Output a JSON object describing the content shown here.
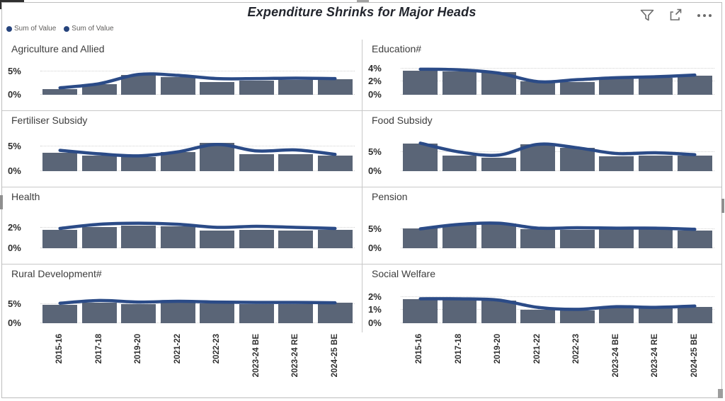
{
  "header": {
    "title": "Expenditure Shrinks for Major Heads",
    "icons": [
      "filter-icon",
      "focus-mode-icon",
      "more-options-icon"
    ]
  },
  "legend": {
    "items": [
      {
        "label": "Sum of Value"
      },
      {
        "label": "Sum of Value"
      }
    ]
  },
  "colors": {
    "bar": "#5a6577",
    "line": "#2b4b87",
    "legend_dot": "#26437c",
    "gridline": "#d2d2d2",
    "divider": "#c8c8c8",
    "card_border": "#bdbdbd",
    "title_text": "#22252d",
    "panel_title_text": "#3d3d3d",
    "axis_text": "#2e2e2e",
    "legend_text": "#605e5c"
  },
  "x_axis": {
    "shared": true,
    "categories": [
      "2015-16",
      "2017-18",
      "2019-20",
      "2021-22",
      "2022-23",
      "2023-24 BE",
      "2023-24 RE",
      "2024-25 BE"
    ]
  },
  "chart_data": [
    {
      "type": "bar+line",
      "title": "Agriculture and Allied",
      "categories": [
        "2015-16",
        "2017-18",
        "2019-20",
        "2021-22",
        "2022-23",
        "2023-24 BE",
        "2023-24 RE",
        "2024-25 BE"
      ],
      "value_format": "percent",
      "yticks": [
        0,
        5
      ],
      "ylim": [
        0,
        7.8
      ],
      "grid": "dotted-horizontal",
      "series": [
        {
          "name": "Sum of Value",
          "type": "bar",
          "values": [
            1.2,
            2.3,
            4.3,
            3.9,
            2.8,
            3.0,
            3.2,
            3.3
          ]
        },
        {
          "name": "Sum of Value",
          "type": "line",
          "values": [
            1.5,
            2.4,
            4.4,
            4.2,
            3.5,
            3.5,
            3.6,
            3.5
          ]
        }
      ]
    },
    {
      "type": "bar+line",
      "title": "Education#",
      "categories": [
        "2015-16",
        "2017-18",
        "2019-20",
        "2021-22",
        "2022-23",
        "2023-24 BE",
        "2023-24 RE",
        "2024-25 BE"
      ],
      "value_format": "percent",
      "yticks": [
        0,
        2,
        4
      ],
      "ylim": [
        0,
        5.5
      ],
      "grid": "dotted-horizontal",
      "series": [
        {
          "name": "Sum of Value",
          "type": "bar",
          "values": [
            3.7,
            3.6,
            3.4,
            2.1,
            1.9,
            2.5,
            2.6,
            2.9
          ]
        },
        {
          "name": "Sum of Value",
          "type": "line",
          "values": [
            3.9,
            3.8,
            3.3,
            2.0,
            2.3,
            2.6,
            2.75,
            3.0
          ]
        }
      ]
    },
    {
      "type": "bar+line",
      "title": "Fertiliser Subsidy",
      "categories": [
        "2015-16",
        "2017-18",
        "2019-20",
        "2021-22",
        "2022-23",
        "2023-24 BE",
        "2023-24 RE",
        "2024-25 BE"
      ],
      "value_format": "percent",
      "yticks": [
        0,
        5
      ],
      "ylim": [
        0,
        8.3
      ],
      "grid": "dotted-horizontal",
      "series": [
        {
          "name": "Sum of Value",
          "type": "bar",
          "values": [
            3.7,
            3.1,
            2.9,
            3.8,
            5.7,
            3.4,
            3.5,
            3.2
          ]
        },
        {
          "name": "Sum of Value",
          "type": "line",
          "values": [
            4.2,
            3.5,
            3.1,
            3.9,
            5.4,
            4.1,
            4.3,
            3.4
          ]
        }
      ]
    },
    {
      "type": "bar+line",
      "title": "Food Subsidy",
      "categories": [
        "2015-16",
        "2017-18",
        "2019-20",
        "2021-22",
        "2022-23",
        "2023-24 BE",
        "2023-24 RE",
        "2024-25 BE"
      ],
      "value_format": "percent",
      "yticks": [
        0,
        5
      ],
      "ylim": [
        0,
        10.7
      ],
      "grid": "dotted-horizontal",
      "series": [
        {
          "name": "Sum of Value",
          "type": "bar",
          "values": [
            7.2,
            4.1,
            3.6,
            7.0,
            6.0,
            3.8,
            4.1,
            4.0
          ]
        },
        {
          "name": "Sum of Value",
          "type": "line",
          "values": [
            7.3,
            5.0,
            4.2,
            7.0,
            6.1,
            4.6,
            4.8,
            4.3
          ]
        }
      ]
    },
    {
      "type": "bar+line",
      "title": "Health",
      "categories": [
        "2015-16",
        "2017-18",
        "2019-20",
        "2021-22",
        "2022-23",
        "2023-24 BE",
        "2023-24 RE",
        "2024-25 BE"
      ],
      "value_format": "percent",
      "yticks": [
        0,
        2
      ],
      "ylim": [
        0,
        4.0
      ],
      "grid": "dotted-horizontal",
      "series": [
        {
          "name": "Sum of Value",
          "type": "bar",
          "values": [
            1.75,
            2.05,
            2.2,
            2.1,
            1.7,
            1.75,
            1.7,
            1.75
          ]
        },
        {
          "name": "Sum of Value",
          "type": "line",
          "values": [
            1.9,
            2.3,
            2.4,
            2.3,
            2.0,
            2.1,
            2.0,
            1.9
          ]
        }
      ]
    },
    {
      "type": "bar+line",
      "title": "Pension",
      "categories": [
        "2015-16",
        "2017-18",
        "2019-20",
        "2021-22",
        "2022-23",
        "2023-24 BE",
        "2023-24 RE",
        "2024-25 BE"
      ],
      "value_format": "percent",
      "yticks": [
        0,
        5
      ],
      "ylim": [
        0,
        11
      ],
      "grid": "dotted-horizontal",
      "series": [
        {
          "name": "Sum of Value",
          "type": "bar",
          "values": [
            5.3,
            6.2,
            6.5,
            5.0,
            4.9,
            5.0,
            5.0,
            4.7
          ]
        },
        {
          "name": "Sum of Value",
          "type": "line",
          "values": [
            5.1,
            6.3,
            6.6,
            5.3,
            5.4,
            5.3,
            5.3,
            5.0
          ]
        }
      ]
    },
    {
      "type": "bar+line",
      "title": "Rural Development#",
      "categories": [
        "2015-16",
        "2017-18",
        "2019-20",
        "2021-22",
        "2022-23",
        "2023-24 BE",
        "2023-24 RE",
        "2024-25 BE"
      ],
      "value_format": "percent",
      "yticks": [
        0,
        5
      ],
      "ylim": [
        0,
        10.3
      ],
      "grid": "dotted-horizontal",
      "series": [
        {
          "name": "Sum of Value",
          "type": "bar",
          "values": [
            4.8,
            5.4,
            4.9,
            5.3,
            5.1,
            4.9,
            4.9,
            5.3
          ]
        },
        {
          "name": "Sum of Value",
          "type": "line",
          "values": [
            5.2,
            5.9,
            5.5,
            5.7,
            5.5,
            5.4,
            5.4,
            5.3
          ]
        }
      ]
    },
    {
      "type": "bar+line",
      "title": "Social Welfare",
      "categories": [
        "2015-16",
        "2017-18",
        "2019-20",
        "2021-22",
        "2022-23",
        "2023-24 BE",
        "2023-24 RE",
        "2024-25 BE"
      ],
      "value_format": "percent",
      "yticks": [
        0,
        1,
        2
      ],
      "ylim": [
        0,
        3.0
      ],
      "grid": "dotted-horizontal",
      "series": [
        {
          "name": "Sum of Value",
          "type": "bar",
          "values": [
            1.8,
            1.8,
            1.7,
            1.0,
            0.95,
            1.2,
            1.1,
            1.25
          ]
        },
        {
          "name": "Sum of Value",
          "type": "line",
          "values": [
            1.85,
            1.85,
            1.75,
            1.2,
            1.05,
            1.25,
            1.2,
            1.3
          ]
        }
      ]
    }
  ]
}
